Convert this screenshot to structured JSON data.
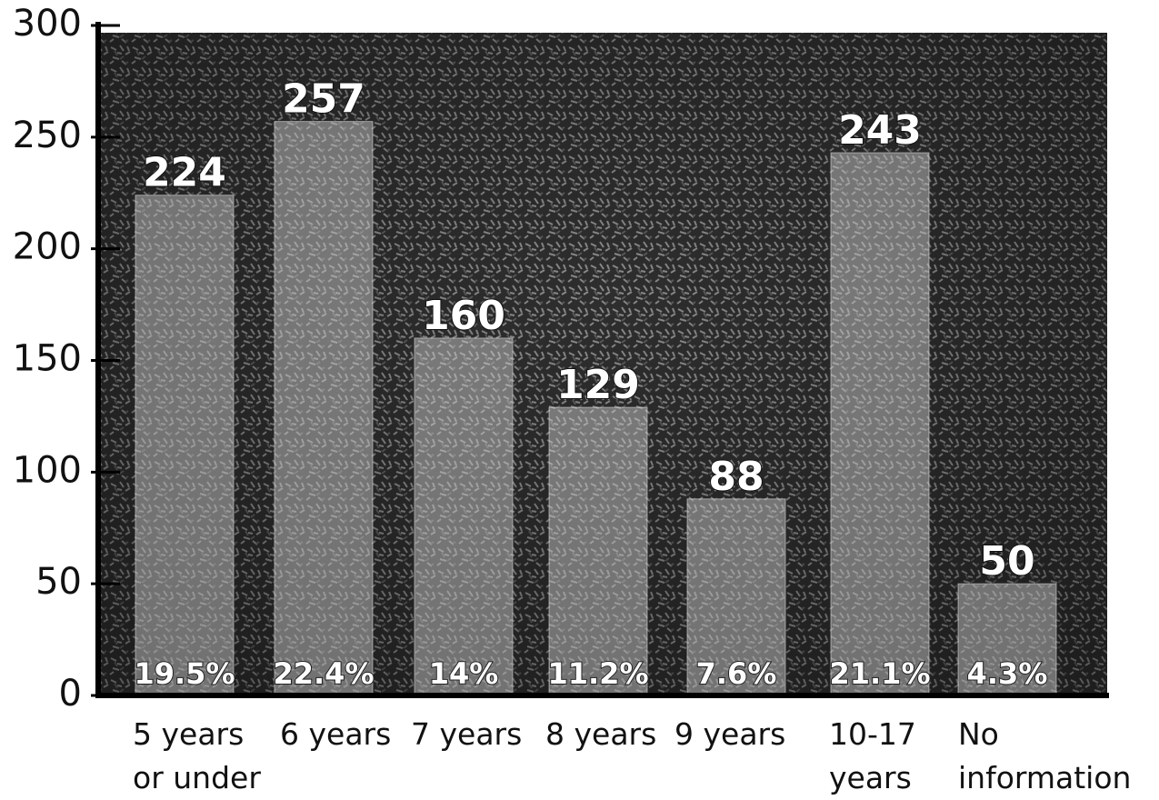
{
  "chart_data": {
    "type": "bar",
    "categories": [
      "5 years\nor under",
      "6 years",
      "7 years",
      "8 years",
      "9 years",
      "10-17\nyears",
      "No\ninformation"
    ],
    "values": [
      224,
      257,
      160,
      129,
      88,
      243,
      50
    ],
    "percentages": [
      19.5,
      22.4,
      14,
      11.2,
      7.6,
      21.1,
      4.3
    ],
    "percentage_labels": [
      "19.5%",
      "22.4%",
      "14%",
      "11.2%",
      "7.6%",
      "21.1%",
      "4.3%"
    ],
    "color": "#d8d8d8",
    "ylim": [
      0,
      300
    ],
    "yticks": [
      0,
      50,
      100,
      150,
      200,
      250,
      300
    ]
  }
}
